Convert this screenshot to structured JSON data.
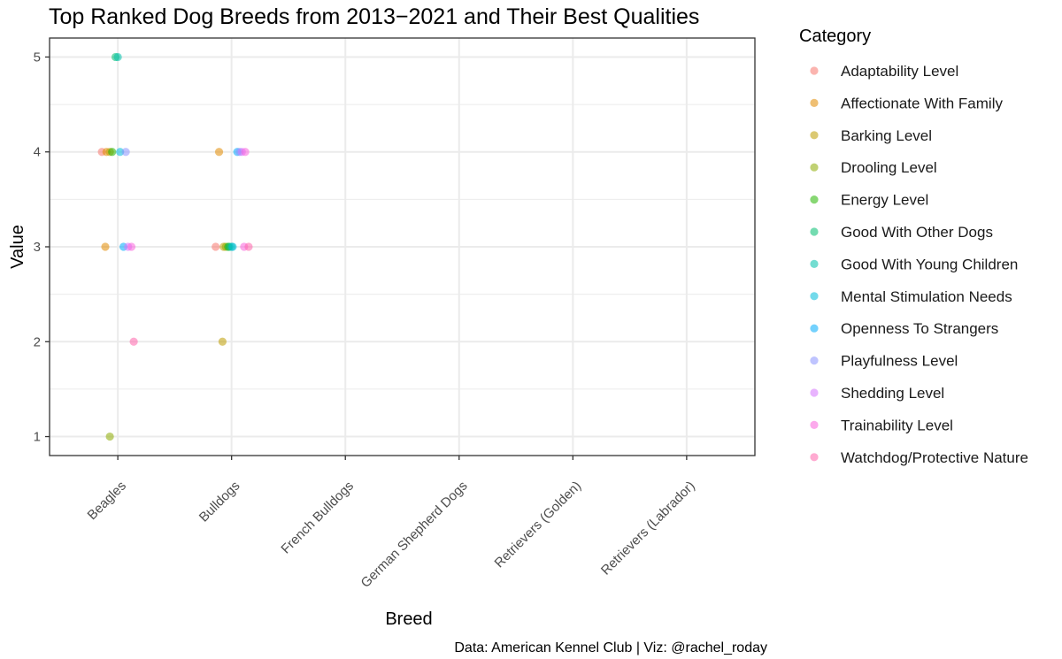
{
  "chart_data": {
    "type": "scatter",
    "title": "Top Ranked Dog Breeds from 2013−2021 and Their Best Qualities",
    "xlabel": "Breed",
    "ylabel": "Value",
    "caption": "Data: American Kennel Club | Viz: @rachel_roday",
    "categories": [
      "Beagles",
      "Bulldogs",
      "French Bulldogs",
      "German Shepherd Dogs",
      "Retrievers (Golden)",
      "Retrievers (Labrador)"
    ],
    "y_ticks": [
      1,
      2,
      3,
      4,
      5
    ],
    "ylim": [
      0.8,
      5.2
    ],
    "grid": true,
    "legend_position": "right",
    "legend_title": "Category",
    "series": [
      {
        "name": "Adaptability Level",
        "color": "#F8766D",
        "points": [
          {
            "x": "Beagles",
            "y": 4,
            "jitter": -0.14
          },
          {
            "x": "Bulldogs",
            "y": 3,
            "jitter": -0.14
          }
        ]
      },
      {
        "name": "Affectionate With Family",
        "color": "#E18A00",
        "points": [
          {
            "x": "Beagles",
            "y": 4,
            "jitter": -0.1
          },
          {
            "x": "Beagles",
            "y": 3,
            "jitter": -0.11
          },
          {
            "x": "Bulldogs",
            "y": 4,
            "jitter": -0.11
          }
        ]
      },
      {
        "name": "Barking Level",
        "color": "#BE9C00",
        "points": [
          {
            "x": "Beagles",
            "y": 4,
            "jitter": -0.07
          },
          {
            "x": "Bulldogs",
            "y": 2,
            "jitter": -0.08
          },
          {
            "x": "Bulldogs",
            "y": 3,
            "jitter": -0.07
          }
        ]
      },
      {
        "name": "Drooling Level",
        "color": "#8CAB00",
        "points": [
          {
            "x": "Beagles",
            "y": 1,
            "jitter": -0.07
          },
          {
            "x": "Bulldogs",
            "y": 3,
            "jitter": -0.05
          }
        ]
      },
      {
        "name": "Energy Level",
        "color": "#24B700",
        "points": [
          {
            "x": "Beagles",
            "y": 4,
            "jitter": -0.05
          },
          {
            "x": "Bulldogs",
            "y": 3,
            "jitter": -0.03
          }
        ]
      },
      {
        "name": "Good With Other Dogs",
        "color": "#00BE70",
        "points": [
          {
            "x": "Beagles",
            "y": 5,
            "jitter": -0.02
          },
          {
            "x": "Bulldogs",
            "y": 3,
            "jitter": -0.02
          }
        ]
      },
      {
        "name": "Good With Young Children",
        "color": "#00C1AB",
        "points": [
          {
            "x": "Beagles",
            "y": 5,
            "jitter": 0.0
          },
          {
            "x": "Bulldogs",
            "y": 3,
            "jitter": 0.0
          }
        ]
      },
      {
        "name": "Mental Stimulation Needs",
        "color": "#00BBDA",
        "points": [
          {
            "x": "Beagles",
            "y": 4,
            "jitter": 0.02
          },
          {
            "x": "Bulldogs",
            "y": 3,
            "jitter": 0.01
          }
        ]
      },
      {
        "name": "Openness To Strangers",
        "color": "#00ACFC",
        "points": [
          {
            "x": "Beagles",
            "y": 3,
            "jitter": 0.05
          },
          {
            "x": "Bulldogs",
            "y": 4,
            "jitter": 0.05
          }
        ]
      },
      {
        "name": "Playfulness Level",
        "color": "#8B93FF",
        "points": [
          {
            "x": "Beagles",
            "y": 4,
            "jitter": 0.07
          },
          {
            "x": "Bulldogs",
            "y": 4,
            "jitter": 0.07
          }
        ]
      },
      {
        "name": "Shedding Level",
        "color": "#D575FE",
        "points": [
          {
            "x": "Beagles",
            "y": 3,
            "jitter": 0.09
          },
          {
            "x": "Bulldogs",
            "y": 4,
            "jitter": 0.09
          }
        ]
      },
      {
        "name": "Trainability Level",
        "color": "#F962DD",
        "points": [
          {
            "x": "Beagles",
            "y": 3,
            "jitter": 0.12
          },
          {
            "x": "Bulldogs",
            "y": 3,
            "jitter": 0.11
          },
          {
            "x": "Bulldogs",
            "y": 4,
            "jitter": 0.12
          }
        ]
      },
      {
        "name": "Watchdog/Protective Nature",
        "color": "#FF65AC",
        "points": [
          {
            "x": "Beagles",
            "y": 2,
            "jitter": 0.14
          },
          {
            "x": "Bulldogs",
            "y": 3,
            "jitter": 0.15
          }
        ]
      }
    ]
  }
}
